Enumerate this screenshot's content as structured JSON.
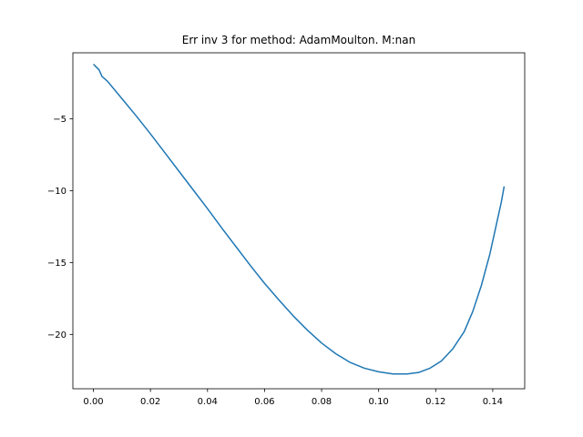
{
  "chart_data": {
    "type": "line",
    "title": "Err inv 3 for method: AdamMoulton. M:nan",
    "xlabel": "",
    "ylabel": "",
    "xlim": [
      -0.0072,
      0.1512
    ],
    "ylim": [
      -23.78,
      -0.41
    ],
    "xticks": [
      0.0,
      0.02,
      0.04,
      0.06,
      0.08,
      0.1,
      0.12,
      0.14
    ],
    "xtick_labels": [
      "0.00",
      "0.02",
      "0.04",
      "0.06",
      "0.08",
      "0.10",
      "0.12",
      "0.14"
    ],
    "yticks": [
      -5,
      -10,
      -15,
      -20
    ],
    "ytick_labels": [
      "−5",
      "−10",
      "−15",
      "−20"
    ],
    "grid": false,
    "series": [
      {
        "color": "#1f77b4",
        "x": [
          0.0,
          0.002,
          0.003,
          0.005,
          0.01,
          0.015,
          0.02,
          0.025,
          0.03,
          0.035,
          0.04,
          0.045,
          0.05,
          0.055,
          0.06,
          0.065,
          0.07,
          0.075,
          0.08,
          0.085,
          0.09,
          0.095,
          0.1,
          0.105,
          0.11,
          0.114,
          0.118,
          0.122,
          0.126,
          0.13,
          0.133,
          0.136,
          0.139,
          0.141,
          0.143,
          0.144
        ],
        "y": [
          -1.2,
          -1.6,
          -2.05,
          -2.4,
          -3.6,
          -4.8,
          -6.05,
          -7.35,
          -8.65,
          -9.95,
          -11.25,
          -12.6,
          -13.9,
          -15.2,
          -16.45,
          -17.6,
          -18.7,
          -19.7,
          -20.6,
          -21.35,
          -21.95,
          -22.35,
          -22.6,
          -22.75,
          -22.75,
          -22.65,
          -22.35,
          -21.85,
          -21.0,
          -19.8,
          -18.4,
          -16.6,
          -14.4,
          -12.6,
          -10.8,
          -9.7
        ]
      }
    ]
  }
}
